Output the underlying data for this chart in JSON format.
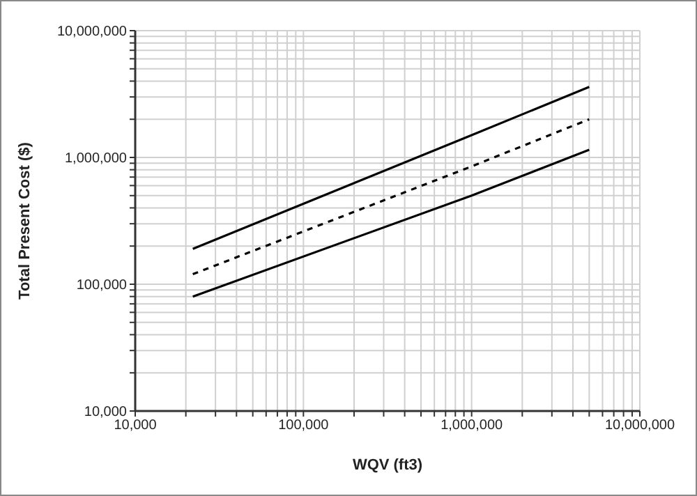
{
  "chart_data": {
    "type": "line",
    "xlabel": "WQV (ft3)",
    "ylabel": "Total Present Cost ($)",
    "log": "xy",
    "grid": true,
    "marker": "none",
    "xlim": [
      10000,
      10000000
    ],
    "ylim": [
      10000,
      10000000
    ],
    "xticks": [
      {
        "value": 10000,
        "label": "10,000"
      },
      {
        "value": 20000,
        "label": null
      },
      {
        "value": 30000,
        "label": null
      },
      {
        "value": 40000,
        "label": null
      },
      {
        "value": 50000,
        "label": null
      },
      {
        "value": 60000,
        "label": null
      },
      {
        "value": 70000,
        "label": null
      },
      {
        "value": 80000,
        "label": null
      },
      {
        "value": 90000,
        "label": null
      },
      {
        "value": 100000,
        "label": "100,000"
      },
      {
        "value": 200000,
        "label": null
      },
      {
        "value": 300000,
        "label": null
      },
      {
        "value": 400000,
        "label": null
      },
      {
        "value": 500000,
        "label": null
      },
      {
        "value": 600000,
        "label": null
      },
      {
        "value": 700000,
        "label": null
      },
      {
        "value": 800000,
        "label": null
      },
      {
        "value": 900000,
        "label": null
      },
      {
        "value": 1000000,
        "label": "1,000,000"
      },
      {
        "value": 2000000,
        "label": null
      },
      {
        "value": 3000000,
        "label": null
      },
      {
        "value": 4000000,
        "label": null
      },
      {
        "value": 5000000,
        "label": null
      },
      {
        "value": 6000000,
        "label": null
      },
      {
        "value": 7000000,
        "label": null
      },
      {
        "value": 8000000,
        "label": null
      },
      {
        "value": 9000000,
        "label": null
      },
      {
        "value": 10000000,
        "label": "10,000,000"
      }
    ],
    "yticks": [
      {
        "value": 10000,
        "label": "10,000"
      },
      {
        "value": 20000,
        "label": null
      },
      {
        "value": 30000,
        "label": null
      },
      {
        "value": 40000,
        "label": null
      },
      {
        "value": 50000,
        "label": null
      },
      {
        "value": 60000,
        "label": null
      },
      {
        "value": 70000,
        "label": null
      },
      {
        "value": 80000,
        "label": null
      },
      {
        "value": 90000,
        "label": null
      },
      {
        "value": 100000,
        "label": "100,000"
      },
      {
        "value": 200000,
        "label": null
      },
      {
        "value": 300000,
        "label": null
      },
      {
        "value": 400000,
        "label": null
      },
      {
        "value": 500000,
        "label": null
      },
      {
        "value": 600000,
        "label": null
      },
      {
        "value": 700000,
        "label": null
      },
      {
        "value": 800000,
        "label": null
      },
      {
        "value": 900000,
        "label": null
      },
      {
        "value": 1000000,
        "label": "1,000,000"
      },
      {
        "value": 2000000,
        "label": null
      },
      {
        "value": 3000000,
        "label": null
      },
      {
        "value": 4000000,
        "label": null
      },
      {
        "value": 5000000,
        "label": null
      },
      {
        "value": 6000000,
        "label": null
      },
      {
        "value": 7000000,
        "label": null
      },
      {
        "value": 8000000,
        "label": null
      },
      {
        "value": 9000000,
        "label": null
      },
      {
        "value": 10000000,
        "label": "10,000,000"
      }
    ],
    "series": [
      {
        "color": "#000000",
        "line_style": "solid",
        "x": [
          22000,
          1000000,
          5000000
        ],
        "values": [
          190000,
          1500000,
          3600000
        ]
      },
      {
        "color": "#000000",
        "line_style": "dashed",
        "x": [
          22000,
          1000000,
          5000000
        ],
        "values": [
          120000,
          850000,
          2000000
        ]
      },
      {
        "color": "#000000",
        "line_style": "solid",
        "x": [
          22000,
          1000000,
          5000000
        ],
        "values": [
          80000,
          500000,
          1150000
        ]
      }
    ]
  }
}
